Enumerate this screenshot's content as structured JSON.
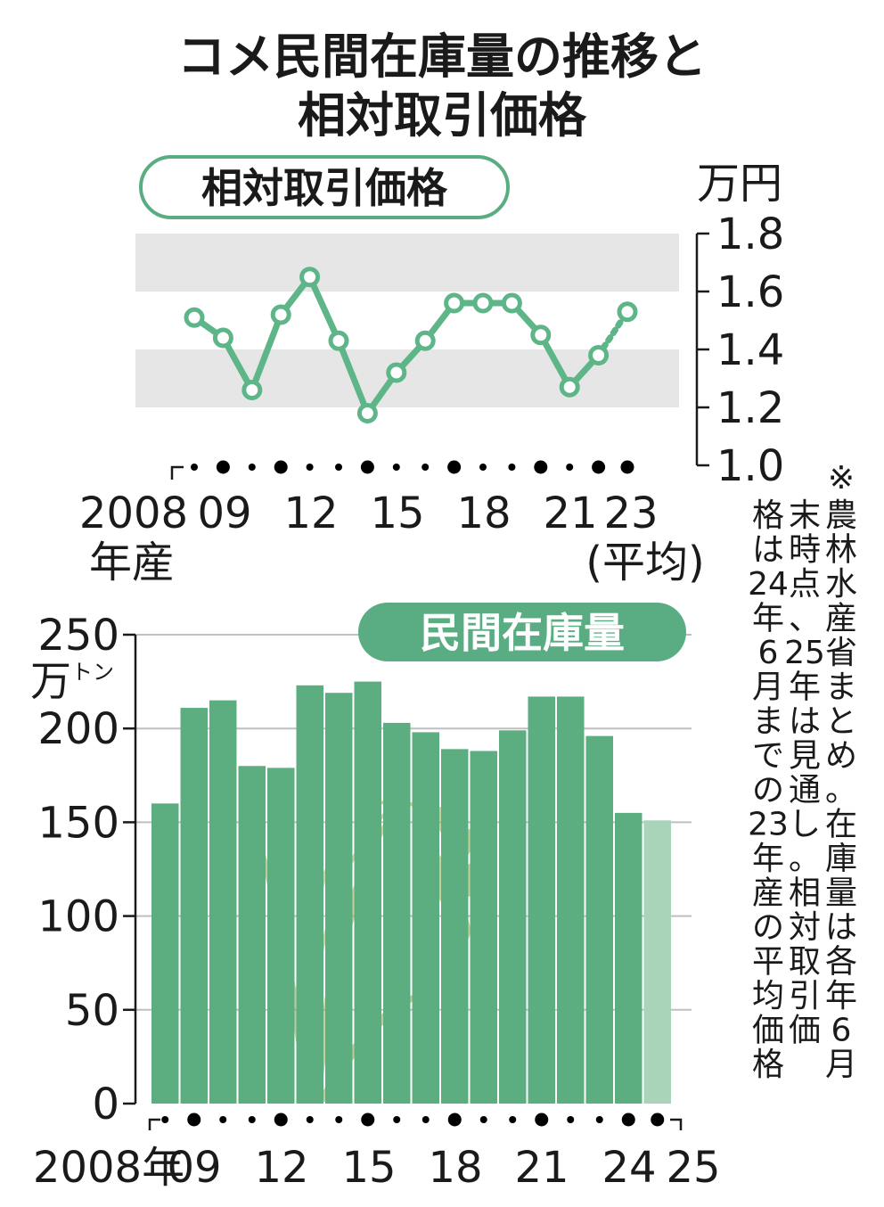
{
  "title_line1": "コメ民間在庫量の推移と",
  "title_line2": "相対取引価格",
  "note_text": "※農林水産省まとめ。在庫量は各年6月末時点、25年は見通し。相対取引価格は24年6月までの23年産の平均価格",
  "colors": {
    "accent": "#5aad82",
    "line": "#5db588",
    "bar": "#5cae81",
    "bar_last": "#a9d4b9",
    "band": "#e6e6e6",
    "text": "#1a1a1a"
  },
  "chart_data": [
    {
      "type": "line",
      "title": "相対取引価格",
      "ylabel": "万円",
      "ylim": [
        1.0,
        1.8
      ],
      "yticks": [
        "1.0",
        "1.2",
        "1.4",
        "1.6",
        "1.8"
      ],
      "shaded_bands": [
        [
          1.2,
          1.4
        ],
        [
          1.6,
          1.8
        ]
      ],
      "x_tick_labels": [
        "2008",
        "09",
        "12",
        "15",
        "18",
        "21",
        "23"
      ],
      "x_label_sub": [
        "年産",
        "(平均)"
      ],
      "x": [
        "2008",
        "2009",
        "2010",
        "2011",
        "2012",
        "2013",
        "2014",
        "2015",
        "2016",
        "2017",
        "2018",
        "2019",
        "2020",
        "2021",
        "2022",
        "2023"
      ],
      "values": [
        1.51,
        1.44,
        1.26,
        1.52,
        1.65,
        1.43,
        1.18,
        1.32,
        1.43,
        1.56,
        1.56,
        1.56,
        1.45,
        1.27,
        1.38,
        1.53
      ]
    },
    {
      "type": "bar",
      "title": "民間在庫量",
      "ylabel": "万トン",
      "ylim": [
        0,
        250
      ],
      "yticks": [
        "0",
        "50",
        "100",
        "150",
        "200",
        "250"
      ],
      "x_tick_labels": [
        "2008年",
        "09",
        "12",
        "15",
        "18",
        "21",
        "24",
        "25"
      ],
      "categories": [
        "2008",
        "2009",
        "2010",
        "2011",
        "2012",
        "2013",
        "2014",
        "2015",
        "2016",
        "2017",
        "2018",
        "2019",
        "2020",
        "2021",
        "2022",
        "2023",
        "2024",
        "2025"
      ],
      "values": [
        160,
        211,
        215,
        180,
        179,
        223,
        219,
        225,
        203,
        198,
        189,
        188,
        199,
        217,
        217,
        196,
        155,
        151
      ],
      "projected_index": 17
    }
  ]
}
